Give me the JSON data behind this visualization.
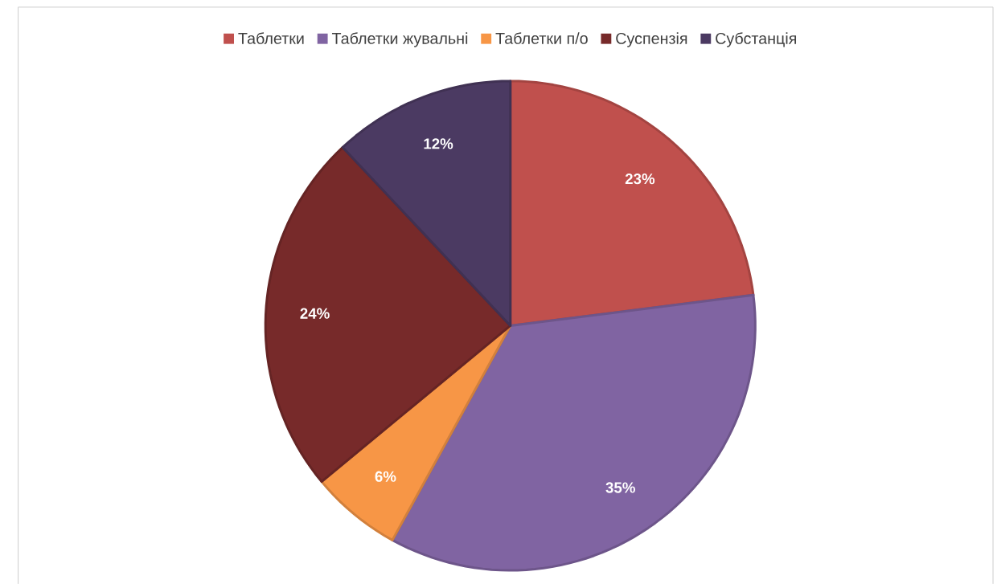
{
  "chart_data": {
    "type": "pie",
    "categories": [
      "Таблетки",
      "Таблетки жувальні",
      "Таблетки п/о",
      "Суспензія",
      "Субстанція"
    ],
    "values": [
      23,
      35,
      6,
      24,
      12
    ],
    "colors": [
      "#c0504d",
      "#8064a2",
      "#f79646",
      "#772a2a",
      "#4b3a62"
    ],
    "value_labels": [
      "23%",
      "35%",
      "6%",
      "24%",
      "12%"
    ],
    "legend": "top"
  }
}
